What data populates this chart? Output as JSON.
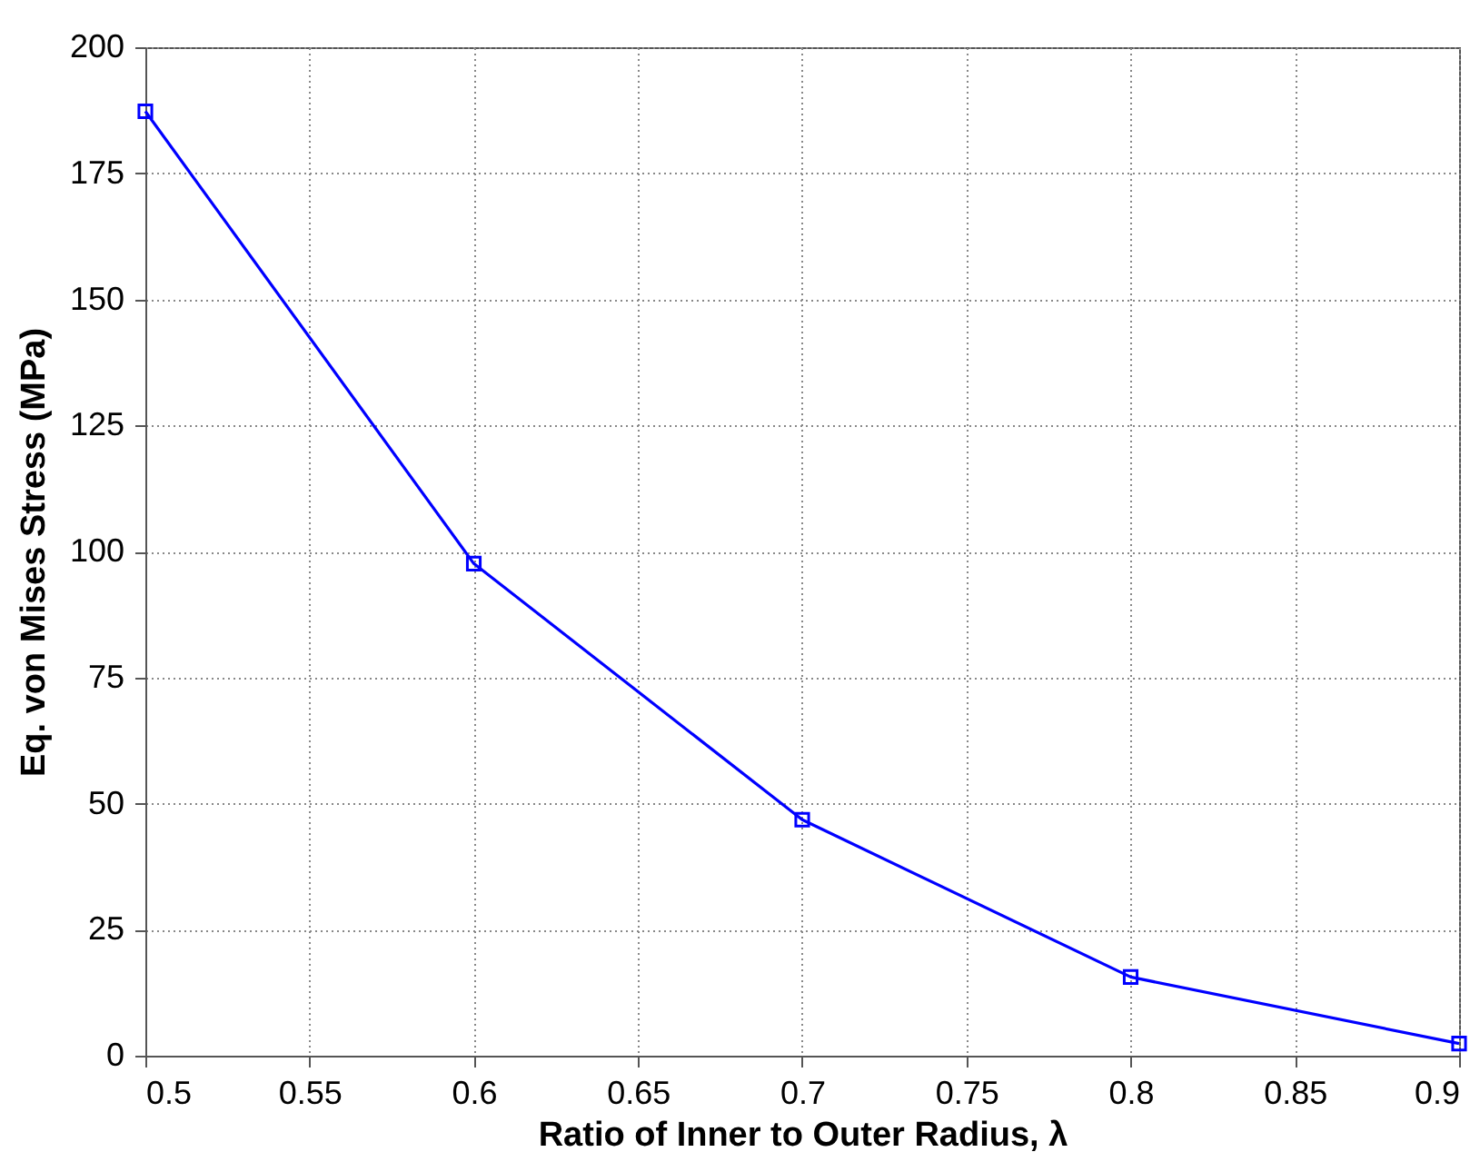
{
  "chart_data": {
    "type": "line",
    "xlabel": "Ratio of Inner to Outer Radius, λ",
    "ylabel": "Eq. von Mises Stress (MPa)",
    "x": [
      0.5,
      0.6,
      0.7,
      0.8,
      0.9
    ],
    "series": [
      {
        "color": "#0000ff",
        "values": [
          187.3,
          97.6,
          46.8,
          15.6,
          2.4
        ]
      }
    ],
    "xlim": [
      0.5,
      0.9
    ],
    "xticks": [
      0.5,
      0.55,
      0.6,
      0.65,
      0.7,
      0.75,
      0.8,
      0.85,
      0.9
    ],
    "ylim": [
      0,
      200
    ],
    "yticks": [
      0,
      25,
      50,
      75,
      100,
      125,
      150,
      175,
      200
    ],
    "grid": true,
    "marker": "square",
    "line_style": "solid",
    "legend": false
  }
}
